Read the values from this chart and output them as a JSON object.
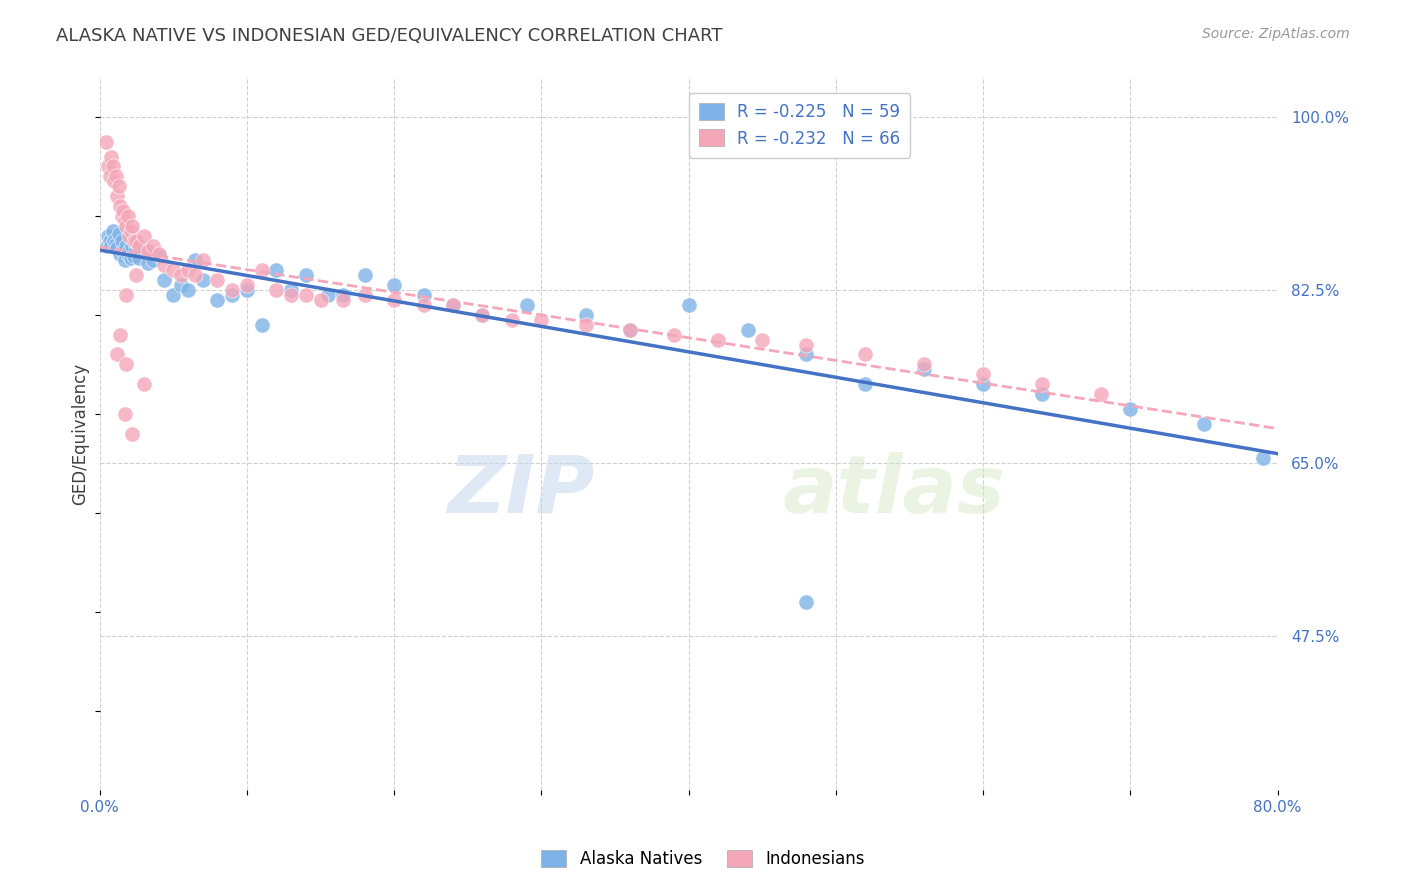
{
  "title": "ALASKA NATIVE VS INDONESIAN GED/EQUIVALENCY CORRELATION CHART",
  "source": "Source: ZipAtlas.com",
  "ylabel": "GED/Equivalency",
  "xlim": [
    0.0,
    0.8
  ],
  "ylim": [
    0.32,
    1.04
  ],
  "xticks": [
    0.0,
    0.1,
    0.2,
    0.3,
    0.4,
    0.5,
    0.6,
    0.7,
    0.8
  ],
  "xticklabels": [
    "0.0%",
    "",
    "",
    "",
    "",
    "",
    "",
    "",
    "80.0%"
  ],
  "ytick_vals": [
    0.475,
    0.65,
    0.825,
    1.0
  ],
  "ytick_labels": [
    "47.5%",
    "65.0%",
    "82.5%",
    "100.0%"
  ],
  "legend_alaska_label": "Alaska Natives",
  "legend_indonesian_label": "Indonesians",
  "legend_alaska_R": "-0.225",
  "legend_alaska_N": "59",
  "legend_indonesian_R": "-0.232",
  "legend_indonesian_N": "66",
  "alaska_color": "#7fb3e8",
  "indonesian_color": "#f4a7b9",
  "trendline_color_blue": "#4472c4",
  "trendline_color_pink": "#f4a7b9",
  "watermark": "ZIPatlas",
  "background_color": "#ffffff",
  "grid_color": "#d0d0d0",
  "axis_label_color": "#4472c4",
  "title_color": "#404040",
  "alaska_points_x": [
    0.005,
    0.006,
    0.007,
    0.008,
    0.009,
    0.01,
    0.011,
    0.012,
    0.013,
    0.014,
    0.015,
    0.016,
    0.017,
    0.018,
    0.019,
    0.02,
    0.021,
    0.022,
    0.023,
    0.025,
    0.027,
    0.03,
    0.033,
    0.036,
    0.04,
    0.044,
    0.05,
    0.055,
    0.06,
    0.065,
    0.07,
    0.08,
    0.09,
    0.1,
    0.11,
    0.12,
    0.13,
    0.14,
    0.155,
    0.165,
    0.18,
    0.2,
    0.22,
    0.24,
    0.26,
    0.29,
    0.33,
    0.36,
    0.4,
    0.44,
    0.48,
    0.52,
    0.56,
    0.6,
    0.64,
    0.7,
    0.75,
    0.79,
    0.48
  ],
  "alaska_points_y": [
    0.87,
    0.88,
    0.875,
    0.87,
    0.885,
    0.875,
    0.872,
    0.868,
    0.882,
    0.862,
    0.875,
    0.865,
    0.855,
    0.87,
    0.862,
    0.865,
    0.858,
    0.87,
    0.86,
    0.868,
    0.858,
    0.865,
    0.852,
    0.855,
    0.86,
    0.835,
    0.82,
    0.83,
    0.825,
    0.855,
    0.835,
    0.815,
    0.82,
    0.825,
    0.79,
    0.845,
    0.825,
    0.84,
    0.82,
    0.82,
    0.84,
    0.83,
    0.82,
    0.81,
    0.8,
    0.81,
    0.8,
    0.785,
    0.81,
    0.785,
    0.76,
    0.73,
    0.745,
    0.73,
    0.72,
    0.705,
    0.69,
    0.655,
    0.51
  ],
  "indonesian_points_x": [
    0.004,
    0.006,
    0.007,
    0.008,
    0.009,
    0.01,
    0.011,
    0.012,
    0.013,
    0.014,
    0.015,
    0.016,
    0.017,
    0.018,
    0.019,
    0.02,
    0.021,
    0.022,
    0.023,
    0.025,
    0.027,
    0.03,
    0.033,
    0.036,
    0.04,
    0.044,
    0.05,
    0.055,
    0.06,
    0.065,
    0.07,
    0.08,
    0.09,
    0.1,
    0.11,
    0.12,
    0.13,
    0.14,
    0.15,
    0.165,
    0.18,
    0.2,
    0.22,
    0.24,
    0.26,
    0.28,
    0.3,
    0.33,
    0.36,
    0.39,
    0.42,
    0.45,
    0.48,
    0.52,
    0.56,
    0.6,
    0.64,
    0.68,
    0.03,
    0.018,
    0.012,
    0.025,
    0.014,
    0.018,
    0.022,
    0.017
  ],
  "indonesian_points_y": [
    0.975,
    0.95,
    0.94,
    0.96,
    0.95,
    0.935,
    0.94,
    0.92,
    0.93,
    0.91,
    0.9,
    0.905,
    0.895,
    0.89,
    0.9,
    0.88,
    0.885,
    0.89,
    0.875,
    0.875,
    0.87,
    0.88,
    0.865,
    0.87,
    0.862,
    0.85,
    0.845,
    0.84,
    0.845,
    0.84,
    0.855,
    0.835,
    0.825,
    0.83,
    0.845,
    0.825,
    0.82,
    0.82,
    0.815,
    0.815,
    0.82,
    0.815,
    0.81,
    0.81,
    0.8,
    0.795,
    0.795,
    0.79,
    0.785,
    0.78,
    0.775,
    0.775,
    0.77,
    0.76,
    0.75,
    0.74,
    0.73,
    0.72,
    0.73,
    0.82,
    0.76,
    0.84,
    0.78,
    0.75,
    0.68,
    0.7
  ]
}
